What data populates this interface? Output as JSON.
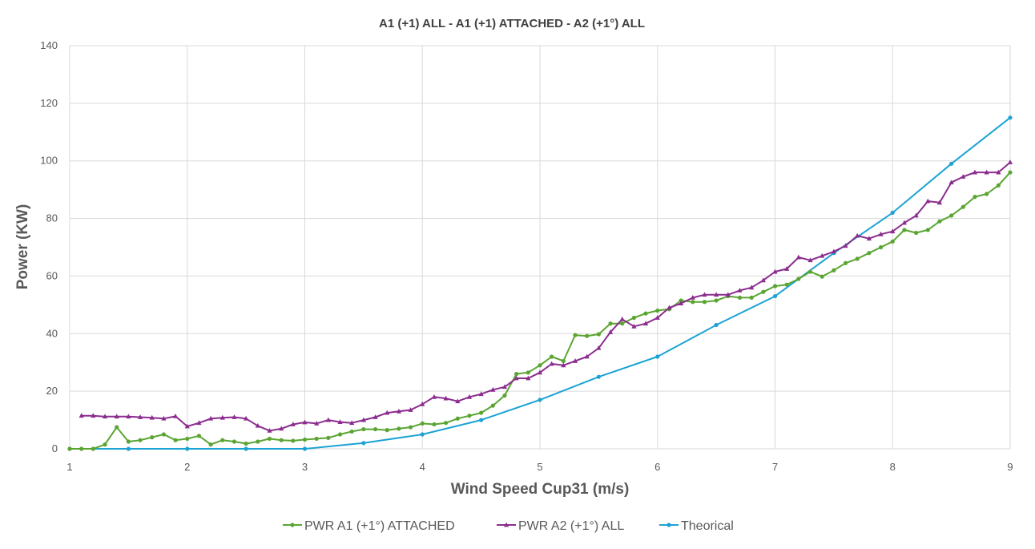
{
  "chart_data": {
    "type": "line",
    "title": "A1 (+1) ALL - A1  (+1) ATTACHED - A2 (+1°) ALL",
    "xlabel": "Wind Speed Cup31 (m/s)",
    "ylabel": "Power (KW)",
    "xlim": [
      1,
      9
    ],
    "ylim": [
      0,
      140
    ],
    "xticks": [
      "1",
      "2",
      "3",
      "4",
      "5",
      "6",
      "7",
      "8",
      "9"
    ],
    "yticks": [
      "0",
      "20",
      "40",
      "60",
      "80",
      "100",
      "120",
      "140"
    ],
    "grid": true,
    "legend_position": "bottom",
    "series": [
      {
        "name": "PWR A1 (+1°) ATTACHED",
        "color": "#5aa532",
        "marker": "circle",
        "x": [
          1.0,
          1.1,
          1.2,
          1.3,
          1.4,
          1.5,
          1.6,
          1.7,
          1.8,
          1.9,
          2.0,
          2.1,
          2.2,
          2.3,
          2.4,
          2.5,
          2.6,
          2.7,
          2.8,
          2.9,
          3.0,
          3.1,
          3.2,
          3.3,
          3.4,
          3.5,
          3.6,
          3.7,
          3.8,
          3.9,
          4.0,
          4.1,
          4.2,
          4.3,
          4.4,
          4.5,
          4.6,
          4.7,
          4.8,
          4.9,
          5.0,
          5.1,
          5.2,
          5.3,
          5.4,
          5.5,
          5.6,
          5.7,
          5.8,
          5.9,
          6.0,
          6.1,
          6.2,
          6.3,
          6.4,
          6.5,
          6.6,
          6.7,
          6.8,
          6.9,
          7.0,
          7.1,
          7.2,
          7.3,
          7.4,
          7.5,
          7.6,
          7.7,
          7.8,
          7.9,
          8.0,
          8.1,
          8.2,
          8.3,
          8.4,
          8.5,
          8.6,
          8.7,
          8.8,
          8.9,
          9.0
        ],
        "values": [
          0,
          0,
          0,
          1.5,
          7.5,
          2.5,
          3,
          4,
          5,
          3,
          3.5,
          4.5,
          1.5,
          3,
          2.5,
          1.8,
          2.5,
          3.5,
          3,
          2.8,
          3.2,
          3.5,
          3.8,
          5,
          6,
          6.8,
          6.8,
          6.5,
          7,
          7.5,
          8.8,
          8.5,
          9,
          10.5,
          11.5,
          12.5,
          15,
          18.5,
          26,
          26.5,
          29,
          32,
          30.5,
          39.5,
          39.2,
          39.8,
          43.5,
          43.5,
          45.5,
          47,
          48,
          48.5,
          51.5,
          51,
          51,
          51.5,
          53,
          52.5,
          52.5,
          54.5,
          56.5,
          57,
          59,
          61.5,
          59.8,
          62,
          64.5,
          66,
          68,
          70,
          72,
          76,
          75,
          76,
          79,
          81,
          84,
          87.5,
          88.5,
          91.5,
          96
        ]
      },
      {
        "name": "PWR A2 (+1°) ALL",
        "color": "#8b2d8f",
        "marker": "triangle",
        "x": [
          1.1,
          1.2,
          1.3,
          1.4,
          1.5,
          1.6,
          1.7,
          1.8,
          1.9,
          2.0,
          2.1,
          2.2,
          2.3,
          2.4,
          2.5,
          2.6,
          2.7,
          2.8,
          2.9,
          3.0,
          3.1,
          3.2,
          3.3,
          3.4,
          3.5,
          3.6,
          3.7,
          3.8,
          3.9,
          4.0,
          4.1,
          4.2,
          4.3,
          4.4,
          4.5,
          4.6,
          4.7,
          4.8,
          4.9,
          5.0,
          5.1,
          5.2,
          5.3,
          5.4,
          5.5,
          5.6,
          5.7,
          5.8,
          5.9,
          6.0,
          6.1,
          6.2,
          6.3,
          6.4,
          6.5,
          6.6,
          6.7,
          6.8,
          6.9,
          7.0,
          7.1,
          7.2,
          7.3,
          7.4,
          7.5,
          7.6,
          7.7,
          7.8,
          7.9,
          8.0,
          8.1,
          8.2,
          8.3,
          8.4,
          8.5,
          8.6,
          8.7,
          8.8,
          8.9,
          9.0
        ],
        "values": [
          11.5,
          11.5,
          11.2,
          11.2,
          11.2,
          11,
          10.8,
          10.5,
          11.3,
          7.8,
          9,
          10.5,
          10.8,
          11,
          10.5,
          8,
          6.3,
          7,
          8.5,
          9.2,
          8.8,
          10,
          9.3,
          9,
          10,
          11,
          12.5,
          13,
          13.5,
          15.5,
          18,
          17.5,
          16.5,
          18,
          19,
          20.5,
          21.5,
          24.5,
          24.5,
          26.5,
          29.5,
          29,
          30.5,
          32,
          35,
          40.5,
          45,
          42.5,
          43.5,
          45.5,
          49,
          50.5,
          52.5,
          53.5,
          53.5,
          53.5,
          55,
          56,
          58.5,
          61.5,
          62.5,
          66.5,
          65.5,
          67,
          68.5,
          70.5,
          74,
          73,
          74.5,
          75.5,
          78.5,
          81,
          86,
          85.5,
          92.5,
          94.5,
          96,
          96,
          96,
          99.5
        ]
      },
      {
        "name": "Theorical",
        "color": "#1ca3d4",
        "marker": "circle",
        "x": [
          1.0,
          1.5,
          2.0,
          2.5,
          3.0,
          3.5,
          4.0,
          4.5,
          5.0,
          5.5,
          6.0,
          6.5,
          7.0,
          7.5,
          8.0,
          8.5,
          9.0
        ],
        "values": [
          0,
          0,
          0,
          0,
          0,
          2,
          5,
          10,
          17,
          25,
          32,
          43,
          53,
          68,
          82,
          99,
          115
        ]
      }
    ]
  }
}
